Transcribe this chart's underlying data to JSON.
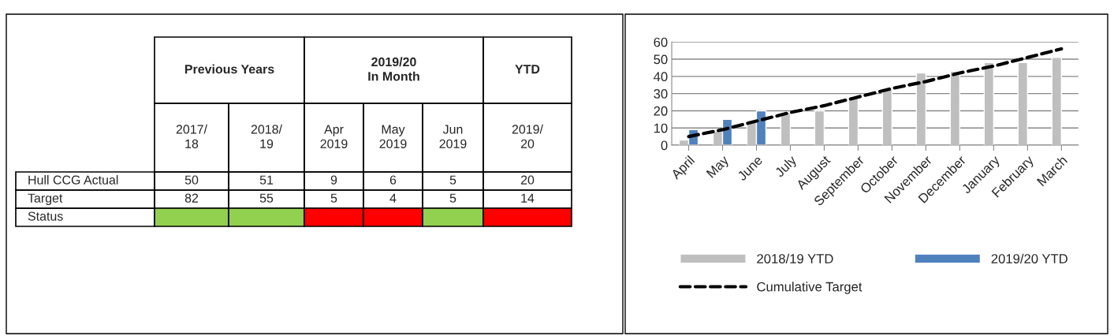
{
  "chart_data": [
    {
      "type": "heatmap",
      "data_labels": true,
      "annotations": [
        "Previous Years",
        "2019/20\nIn Month",
        "YTD"
      ],
      "categories": [
        "2017/\n18",
        "2018/\n19",
        "Apr\n2019",
        "May\n2019",
        "Jun\n2019",
        "2019/\n20"
      ],
      "y_categories": [
        "Hull CCG Actual",
        "Target",
        "Status"
      ],
      "cells": [
        [
          50,
          51,
          9,
          6,
          5,
          20
        ],
        [
          82,
          55,
          5,
          4,
          5,
          14
        ],
        [
          null,
          null,
          null,
          null,
          null,
          null
        ]
      ],
      "colors": [
        "#92d050",
        "#92d050",
        "#ff0000",
        "#ff0000",
        "#92d050",
        "#ff0000"
      ]
    },
    {
      "type": "bar",
      "categories": [
        "April",
        "May",
        "June",
        "July",
        "August",
        "September",
        "October",
        "November",
        "December",
        "January",
        "February",
        "March"
      ],
      "series": [
        {
          "name": "2018/19 YTD",
          "color": "#bfbfbf",
          "values": [
            3,
            8,
            14,
            19,
            20,
            28,
            33,
            42,
            43,
            48,
            48,
            51
          ]
        },
        {
          "name": "2019/20 YTD",
          "color": "#4f81bd",
          "values": [
            9,
            15,
            20,
            null,
            null,
            null,
            null,
            null,
            null,
            null,
            null,
            null
          ]
        },
        {
          "name": "Cumulative Target",
          "type": "line",
          "color": "#000000",
          "line_style": "dashed",
          "values": [
            5,
            9,
            14,
            19,
            23,
            28,
            33,
            37,
            42,
            46,
            51,
            56
          ]
        }
      ],
      "ylim": [
        0,
        60
      ],
      "yticks": [
        0,
        10,
        20,
        30,
        40,
        50,
        60
      ],
      "grid": "y",
      "legend": "bottom"
    }
  ]
}
